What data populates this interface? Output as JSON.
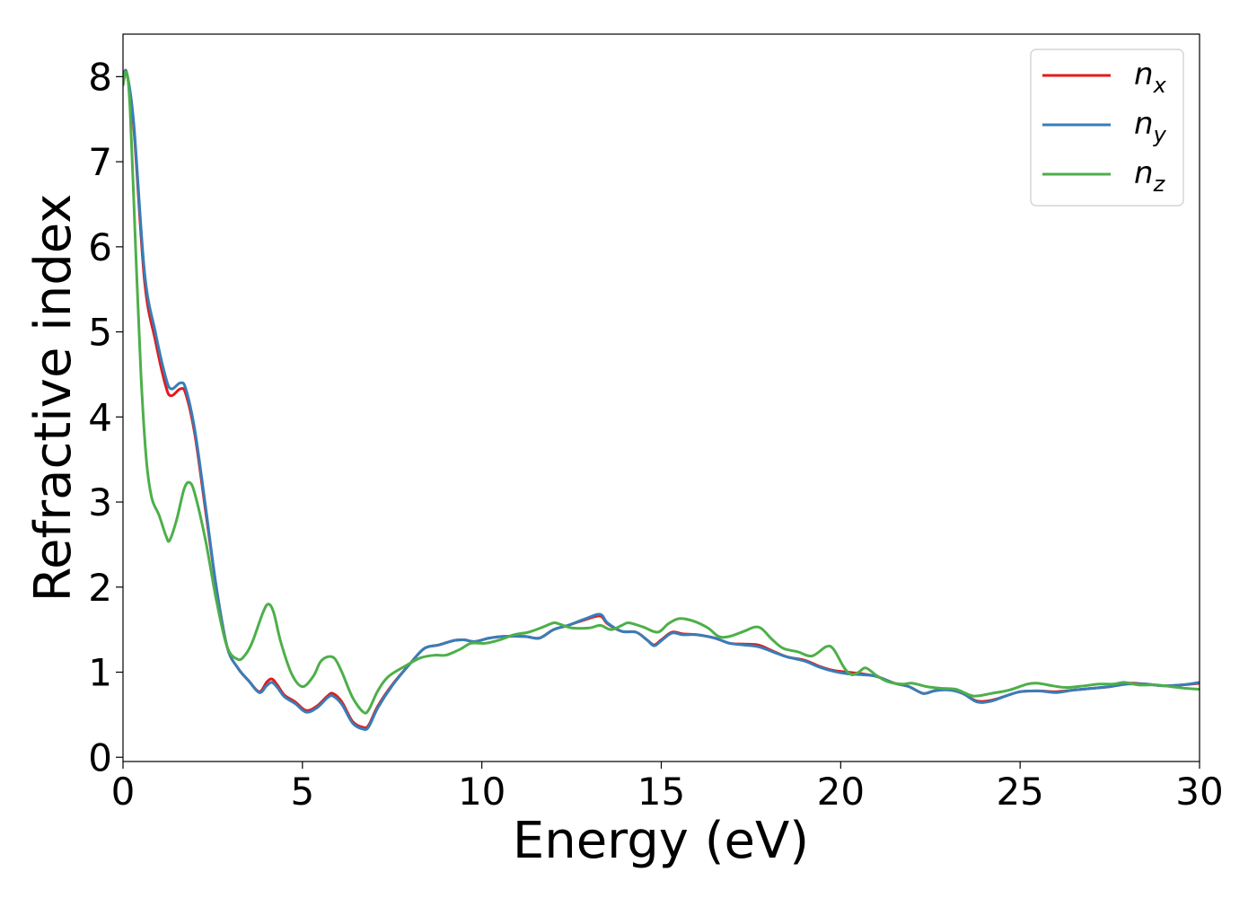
{
  "chart_data": {
    "type": "line",
    "title": "",
    "xlabel": "Energy (eV)",
    "ylabel": "Refractive index",
    "xlim": [
      0,
      30
    ],
    "ylim": [
      -0.05,
      8.5
    ],
    "xticks": [
      0,
      5,
      10,
      15,
      20,
      25,
      30
    ],
    "yticks": [
      0,
      1,
      2,
      3,
      4,
      5,
      6,
      7,
      8
    ],
    "grid": false,
    "legend_position": "top-right",
    "series": [
      {
        "name": "n",
        "sub": "x",
        "color": "#e41a1c",
        "points": [
          [
            0,
            7.95
          ],
          [
            0.1,
            8.05
          ],
          [
            0.3,
            7.4
          ],
          [
            0.6,
            5.6
          ],
          [
            0.9,
            4.9
          ],
          [
            1.2,
            4.35
          ],
          [
            1.35,
            4.25
          ],
          [
            1.6,
            4.33
          ],
          [
            1.75,
            4.27
          ],
          [
            2.0,
            3.8
          ],
          [
            2.3,
            2.9
          ],
          [
            2.6,
            2.0
          ],
          [
            2.9,
            1.3
          ],
          [
            3.2,
            1.05
          ],
          [
            3.5,
            0.9
          ],
          [
            3.8,
            0.77
          ],
          [
            4.0,
            0.88
          ],
          [
            4.15,
            0.92
          ],
          [
            4.3,
            0.85
          ],
          [
            4.5,
            0.73
          ],
          [
            4.8,
            0.65
          ],
          [
            5.1,
            0.55
          ],
          [
            5.4,
            0.6
          ],
          [
            5.7,
            0.72
          ],
          [
            5.85,
            0.75
          ],
          [
            6.1,
            0.65
          ],
          [
            6.4,
            0.42
          ],
          [
            6.7,
            0.35
          ],
          [
            6.85,
            0.38
          ],
          [
            7.1,
            0.6
          ],
          [
            7.5,
            0.85
          ],
          [
            8.0,
            1.1
          ],
          [
            8.4,
            1.28
          ],
          [
            8.8,
            1.32
          ],
          [
            9.2,
            1.37
          ],
          [
            9.5,
            1.38
          ],
          [
            9.8,
            1.36
          ],
          [
            10.2,
            1.4
          ],
          [
            10.6,
            1.42
          ],
          [
            11.2,
            1.42
          ],
          [
            11.6,
            1.4
          ],
          [
            12.0,
            1.5
          ],
          [
            12.4,
            1.55
          ],
          [
            12.9,
            1.62
          ],
          [
            13.3,
            1.66
          ],
          [
            13.5,
            1.57
          ],
          [
            13.9,
            1.48
          ],
          [
            14.3,
            1.47
          ],
          [
            14.6,
            1.38
          ],
          [
            14.8,
            1.32
          ],
          [
            15.0,
            1.38
          ],
          [
            15.3,
            1.47
          ],
          [
            15.6,
            1.45
          ],
          [
            16.0,
            1.44
          ],
          [
            16.5,
            1.4
          ],
          [
            16.9,
            1.34
          ],
          [
            17.3,
            1.33
          ],
          [
            17.7,
            1.32
          ],
          [
            18.1,
            1.25
          ],
          [
            18.5,
            1.18
          ],
          [
            19.0,
            1.14
          ],
          [
            19.4,
            1.07
          ],
          [
            19.8,
            1.02
          ],
          [
            20.2,
            1.0
          ],
          [
            20.6,
            0.98
          ],
          [
            21.0,
            0.95
          ],
          [
            21.5,
            0.87
          ],
          [
            21.9,
            0.83
          ],
          [
            22.3,
            0.75
          ],
          [
            22.6,
            0.78
          ],
          [
            23.0,
            0.8
          ],
          [
            23.4,
            0.75
          ],
          [
            23.8,
            0.66
          ],
          [
            24.2,
            0.67
          ],
          [
            24.6,
            0.72
          ],
          [
            25.0,
            0.77
          ],
          [
            25.5,
            0.78
          ],
          [
            26.0,
            0.77
          ],
          [
            26.5,
            0.79
          ],
          [
            27.0,
            0.81
          ],
          [
            27.5,
            0.83
          ],
          [
            28.0,
            0.87
          ],
          [
            28.5,
            0.86
          ],
          [
            29.0,
            0.84
          ],
          [
            29.5,
            0.85
          ],
          [
            30.0,
            0.87
          ]
        ]
      },
      {
        "name": "n",
        "sub": "y",
        "color": "#377eb8",
        "points": [
          [
            0,
            7.95
          ],
          [
            0.1,
            8.05
          ],
          [
            0.3,
            7.45
          ],
          [
            0.6,
            5.7
          ],
          [
            0.9,
            5.0
          ],
          [
            1.2,
            4.45
          ],
          [
            1.35,
            4.33
          ],
          [
            1.6,
            4.4
          ],
          [
            1.75,
            4.33
          ],
          [
            2.0,
            3.85
          ],
          [
            2.3,
            2.95
          ],
          [
            2.6,
            2.0
          ],
          [
            2.9,
            1.3
          ],
          [
            3.2,
            1.05
          ],
          [
            3.5,
            0.9
          ],
          [
            3.8,
            0.76
          ],
          [
            4.0,
            0.84
          ],
          [
            4.15,
            0.88
          ],
          [
            4.3,
            0.82
          ],
          [
            4.5,
            0.71
          ],
          [
            4.8,
            0.63
          ],
          [
            5.1,
            0.53
          ],
          [
            5.4,
            0.58
          ],
          [
            5.7,
            0.7
          ],
          [
            5.85,
            0.72
          ],
          [
            6.1,
            0.62
          ],
          [
            6.4,
            0.4
          ],
          [
            6.7,
            0.33
          ],
          [
            6.85,
            0.36
          ],
          [
            7.1,
            0.58
          ],
          [
            7.5,
            0.84
          ],
          [
            8.0,
            1.1
          ],
          [
            8.4,
            1.28
          ],
          [
            8.8,
            1.32
          ],
          [
            9.2,
            1.37
          ],
          [
            9.5,
            1.38
          ],
          [
            9.8,
            1.36
          ],
          [
            10.2,
            1.4
          ],
          [
            10.6,
            1.42
          ],
          [
            11.2,
            1.42
          ],
          [
            11.6,
            1.4
          ],
          [
            12.0,
            1.5
          ],
          [
            12.4,
            1.55
          ],
          [
            12.9,
            1.63
          ],
          [
            13.3,
            1.68
          ],
          [
            13.5,
            1.58
          ],
          [
            13.9,
            1.48
          ],
          [
            14.3,
            1.47
          ],
          [
            14.6,
            1.38
          ],
          [
            14.8,
            1.31
          ],
          [
            15.0,
            1.37
          ],
          [
            15.3,
            1.46
          ],
          [
            15.6,
            1.44
          ],
          [
            16.0,
            1.44
          ],
          [
            16.5,
            1.4
          ],
          [
            16.9,
            1.34
          ],
          [
            17.3,
            1.32
          ],
          [
            17.7,
            1.3
          ],
          [
            18.1,
            1.24
          ],
          [
            18.5,
            1.18
          ],
          [
            19.0,
            1.13
          ],
          [
            19.4,
            1.06
          ],
          [
            19.8,
            1.01
          ],
          [
            20.2,
            0.98
          ],
          [
            20.6,
            0.97
          ],
          [
            21.0,
            0.95
          ],
          [
            21.5,
            0.87
          ],
          [
            21.9,
            0.83
          ],
          [
            22.3,
            0.75
          ],
          [
            22.6,
            0.78
          ],
          [
            23.0,
            0.79
          ],
          [
            23.4,
            0.75
          ],
          [
            23.8,
            0.65
          ],
          [
            24.2,
            0.66
          ],
          [
            24.6,
            0.72
          ],
          [
            25.0,
            0.77
          ],
          [
            25.5,
            0.78
          ],
          [
            26.0,
            0.76
          ],
          [
            26.5,
            0.79
          ],
          [
            27.0,
            0.81
          ],
          [
            27.5,
            0.83
          ],
          [
            28.0,
            0.86
          ],
          [
            28.5,
            0.86
          ],
          [
            29.0,
            0.84
          ],
          [
            29.5,
            0.85
          ],
          [
            30.0,
            0.88
          ]
        ]
      },
      {
        "name": "n",
        "sub": "z",
        "color": "#4daf4a",
        "points": [
          [
            0,
            7.9
          ],
          [
            0.1,
            8.05
          ],
          [
            0.2,
            7.6
          ],
          [
            0.35,
            6.0
          ],
          [
            0.5,
            4.5
          ],
          [
            0.65,
            3.5
          ],
          [
            0.8,
            3.05
          ],
          [
            1.0,
            2.85
          ],
          [
            1.2,
            2.6
          ],
          [
            1.3,
            2.55
          ],
          [
            1.5,
            2.8
          ],
          [
            1.7,
            3.15
          ],
          [
            1.85,
            3.23
          ],
          [
            2.0,
            3.1
          ],
          [
            2.3,
            2.55
          ],
          [
            2.6,
            1.85
          ],
          [
            2.9,
            1.3
          ],
          [
            3.2,
            1.15
          ],
          [
            3.4,
            1.2
          ],
          [
            3.6,
            1.35
          ],
          [
            3.9,
            1.7
          ],
          [
            4.05,
            1.8
          ],
          [
            4.2,
            1.7
          ],
          [
            4.4,
            1.35
          ],
          [
            4.7,
            0.98
          ],
          [
            5.0,
            0.83
          ],
          [
            5.3,
            0.95
          ],
          [
            5.5,
            1.12
          ],
          [
            5.7,
            1.18
          ],
          [
            5.9,
            1.16
          ],
          [
            6.1,
            1.0
          ],
          [
            6.4,
            0.7
          ],
          [
            6.7,
            0.53
          ],
          [
            6.85,
            0.56
          ],
          [
            7.1,
            0.78
          ],
          [
            7.4,
            0.95
          ],
          [
            7.9,
            1.08
          ],
          [
            8.3,
            1.17
          ],
          [
            8.7,
            1.2
          ],
          [
            9.0,
            1.2
          ],
          [
            9.4,
            1.27
          ],
          [
            9.7,
            1.34
          ],
          [
            10.1,
            1.34
          ],
          [
            10.5,
            1.38
          ],
          [
            10.9,
            1.44
          ],
          [
            11.3,
            1.47
          ],
          [
            11.7,
            1.53
          ],
          [
            12.0,
            1.58
          ],
          [
            12.2,
            1.56
          ],
          [
            12.5,
            1.52
          ],
          [
            13.0,
            1.52
          ],
          [
            13.3,
            1.55
          ],
          [
            13.6,
            1.5
          ],
          [
            13.9,
            1.55
          ],
          [
            14.1,
            1.58
          ],
          [
            14.5,
            1.53
          ],
          [
            14.9,
            1.47
          ],
          [
            15.2,
            1.57
          ],
          [
            15.5,
            1.63
          ],
          [
            15.9,
            1.6
          ],
          [
            16.3,
            1.52
          ],
          [
            16.6,
            1.42
          ],
          [
            16.9,
            1.42
          ],
          [
            17.3,
            1.48
          ],
          [
            17.6,
            1.53
          ],
          [
            17.8,
            1.51
          ],
          [
            18.1,
            1.38
          ],
          [
            18.4,
            1.28
          ],
          [
            18.8,
            1.24
          ],
          [
            19.2,
            1.19
          ],
          [
            19.6,
            1.3
          ],
          [
            19.8,
            1.27
          ],
          [
            20.1,
            1.05
          ],
          [
            20.3,
            0.97
          ],
          [
            20.5,
            1.0
          ],
          [
            20.7,
            1.05
          ],
          [
            21.0,
            0.96
          ],
          [
            21.3,
            0.89
          ],
          [
            21.7,
            0.86
          ],
          [
            22.0,
            0.87
          ],
          [
            22.4,
            0.83
          ],
          [
            22.8,
            0.81
          ],
          [
            23.2,
            0.8
          ],
          [
            23.6,
            0.73
          ],
          [
            23.8,
            0.72
          ],
          [
            24.2,
            0.75
          ],
          [
            24.7,
            0.79
          ],
          [
            25.2,
            0.86
          ],
          [
            25.5,
            0.87
          ],
          [
            25.9,
            0.84
          ],
          [
            26.3,
            0.82
          ],
          [
            26.8,
            0.84
          ],
          [
            27.2,
            0.86
          ],
          [
            27.6,
            0.86
          ],
          [
            27.9,
            0.88
          ],
          [
            28.3,
            0.85
          ],
          [
            28.8,
            0.85
          ],
          [
            29.2,
            0.83
          ],
          [
            29.6,
            0.81
          ],
          [
            30.0,
            0.8
          ]
        ]
      }
    ]
  }
}
